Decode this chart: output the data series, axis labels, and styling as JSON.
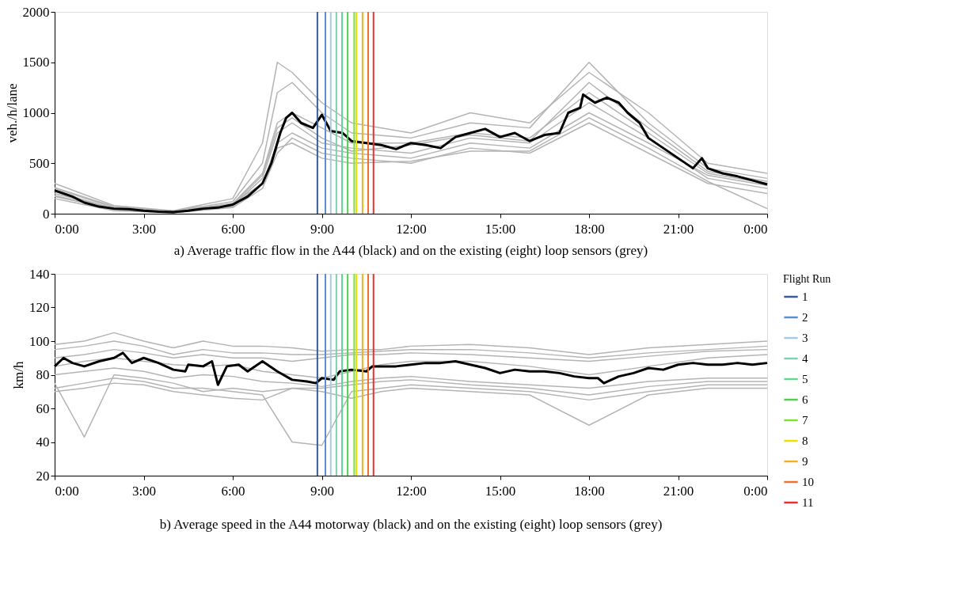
{
  "chart_data": [
    {
      "type": "line",
      "title": "a) Average traffic flow in the A44 (black) and on the existing (eight) loop sensors (grey)",
      "ylabel": "veh./h/lane",
      "xlim": [
        0,
        24
      ],
      "xticks": [
        {
          "value": 0,
          "label": "0:00"
        },
        {
          "value": 3,
          "label": "3:00"
        },
        {
          "value": 6,
          "label": "6:00"
        },
        {
          "value": 9,
          "label": "9:00"
        },
        {
          "value": 12,
          "label": "12:00"
        },
        {
          "value": 15,
          "label": "15:00"
        },
        {
          "value": 18,
          "label": "18:00"
        },
        {
          "value": 21,
          "label": "21:00"
        },
        {
          "value": 24,
          "label": "0:00"
        }
      ],
      "ylim": [
        0,
        2000
      ],
      "yticks": [
        0,
        500,
        1000,
        1500,
        2000
      ],
      "grid": false,
      "marker": "none",
      "line_style": "solid",
      "series": [
        {
          "color": "#b4b4b4",
          "x": [
            0,
            2,
            4,
            6,
            7,
            7.5,
            8,
            9,
            10,
            12,
            14,
            16,
            18,
            20,
            22,
            24
          ],
          "values": [
            300,
            80,
            30,
            150,
            700,
            1500,
            1400,
            1100,
            900,
            800,
            1000,
            900,
            1400,
            1000,
            500,
            400
          ]
        },
        {
          "color": "#b4b4b4",
          "x": [
            0,
            2,
            4,
            6,
            7,
            7.5,
            8,
            9,
            10,
            12,
            14,
            16,
            18,
            20,
            22,
            24
          ],
          "values": [
            250,
            60,
            25,
            120,
            500,
            1200,
            1300,
            1000,
            800,
            750,
            900,
            850,
            1500,
            900,
            450,
            350
          ]
        },
        {
          "color": "#b4b4b4",
          "x": [
            0,
            2,
            4,
            6,
            7,
            7.5,
            8,
            9,
            10,
            12,
            14,
            16,
            18,
            20,
            22,
            24
          ],
          "values": [
            200,
            50,
            20,
            100,
            400,
            900,
            1000,
            850,
            700,
            700,
            800,
            750,
            1200,
            800,
            400,
            300
          ]
        },
        {
          "color": "#b4b4b4",
          "x": [
            0,
            2,
            4,
            6,
            7,
            7.5,
            8,
            9,
            10,
            12,
            14,
            16,
            18,
            20,
            22,
            24
          ],
          "values": [
            180,
            40,
            15,
            80,
            350,
            800,
            900,
            700,
            650,
            600,
            750,
            700,
            1100,
            750,
            350,
            250
          ]
        },
        {
          "color": "#b4b4b4",
          "x": [
            0,
            2,
            4,
            6,
            7,
            7.5,
            8,
            9,
            10,
            12,
            14,
            16,
            18,
            20,
            22,
            24
          ],
          "values": [
            220,
            50,
            20,
            100,
            300,
            700,
            800,
            650,
            600,
            550,
            700,
            650,
            1000,
            700,
            380,
            280
          ]
        },
        {
          "color": "#b4b4b4",
          "x": [
            0,
            2,
            4,
            6,
            7,
            7.5,
            8,
            9,
            10,
            12,
            14,
            16,
            18,
            20,
            22,
            24
          ],
          "values": [
            150,
            30,
            10,
            60,
            250,
            600,
            750,
            600,
            550,
            500,
            650,
            600,
            900,
            600,
            300,
            200
          ]
        },
        {
          "color": "#b4b4b4",
          "x": [
            0,
            2,
            4,
            6,
            7,
            7.5,
            8,
            9,
            10,
            12,
            14,
            16,
            18,
            20,
            22,
            24
          ],
          "values": [
            260,
            70,
            25,
            90,
            380,
            850,
            950,
            750,
            620,
            680,
            780,
            720,
            1300,
            850,
            420,
            320
          ]
        },
        {
          "color": "#b4b4b4",
          "x": [
            0,
            2,
            4,
            6,
            7,
            7.5,
            8,
            9,
            10,
            12,
            14,
            16,
            18,
            20,
            22,
            24
          ],
          "values": [
            170,
            45,
            15,
            70,
            300,
            650,
            700,
            550,
            500,
            520,
            620,
            620,
            950,
            650,
            320,
            50
          ]
        },
        {
          "color": "#000000",
          "x": [
            0,
            0.3,
            0.6,
            1,
            1.5,
            2,
            2.5,
            3,
            3.5,
            4,
            4.5,
            5,
            5.5,
            6,
            6.5,
            7,
            7.3,
            7.6,
            7.8,
            8,
            8.3,
            8.7,
            9,
            9.3,
            9.7,
            10,
            10.5,
            11,
            11.5,
            12,
            12.5,
            13,
            13.5,
            14,
            14.5,
            15,
            15.5,
            16,
            16.5,
            17,
            17.3,
            17.7,
            17.8,
            18.2,
            18.6,
            19,
            19.3,
            19.7,
            20,
            20.5,
            21,
            21.5,
            21.8,
            22,
            22.5,
            23,
            23.5,
            24
          ],
          "values": [
            230,
            200,
            170,
            110,
            70,
            50,
            45,
            30,
            20,
            15,
            30,
            50,
            60,
            90,
            170,
            300,
            500,
            800,
            950,
            1000,
            900,
            850,
            980,
            820,
            800,
            720,
            700,
            680,
            640,
            700,
            680,
            650,
            760,
            800,
            840,
            760,
            800,
            720,
            780,
            800,
            1000,
            1050,
            1180,
            1100,
            1150,
            1100,
            1000,
            900,
            750,
            650,
            550,
            450,
            550,
            450,
            400,
            370,
            330,
            290
          ]
        },
        {
          "color": "#3a5a9a",
          "x": [
            8.85,
            8.85
          ],
          "values": [
            0,
            2000
          ]
        },
        {
          "color": "#5b8fd0",
          "x": [
            9.12,
            9.12
          ],
          "values": [
            0,
            2000
          ]
        },
        {
          "color": "#a8c8e8",
          "x": [
            9.3,
            9.3
          ],
          "values": [
            0,
            2000
          ]
        },
        {
          "color": "#7fd0b0",
          "x": [
            9.49,
            9.49
          ],
          "values": [
            0,
            2000
          ]
        },
        {
          "color": "#60d890",
          "x": [
            9.68,
            9.68
          ],
          "values": [
            0,
            2000
          ]
        },
        {
          "color": "#50d050",
          "x": [
            9.87,
            9.87
          ],
          "values": [
            0,
            2000
          ]
        },
        {
          "color": "#80e030",
          "x": [
            10.09,
            10.09
          ],
          "values": [
            0,
            2000
          ]
        },
        {
          "color": "#f0e000",
          "x": [
            10.16,
            10.16
          ],
          "values": [
            0,
            2000
          ]
        },
        {
          "color": "#f0b020",
          "x": [
            10.37,
            10.37
          ],
          "values": [
            0,
            2000
          ]
        },
        {
          "color": "#f07030",
          "x": [
            10.56,
            10.56
          ],
          "values": [
            0,
            2000
          ]
        },
        {
          "color": "#e83030",
          "x": [
            10.74,
            10.74
          ],
          "values": [
            0,
            2000
          ]
        }
      ]
    },
    {
      "type": "line",
      "title": "b) Average speed in the A44 motorway (black) and on the existing (eight) loop sensors (grey)",
      "ylabel": "km/h",
      "legend_title": "Flight Run",
      "xlim": [
        0,
        24
      ],
      "xticks": [
        {
          "value": 0,
          "label": "0:00"
        },
        {
          "value": 3,
          "label": "3:00"
        },
        {
          "value": 6,
          "label": "6:00"
        },
        {
          "value": 9,
          "label": "9:00"
        },
        {
          "value": 12,
          "label": "12:00"
        },
        {
          "value": 15,
          "label": "15:00"
        },
        {
          "value": 18,
          "label": "18:00"
        },
        {
          "value": 21,
          "label": "21:00"
        },
        {
          "value": 24,
          "label": "0:00"
        }
      ],
      "ylim": [
        20,
        140
      ],
      "yticks": [
        20,
        40,
        60,
        80,
        100,
        120,
        140
      ],
      "grid": false,
      "legend": "right",
      "marker": "none",
      "line_style": "solid",
      "series": [
        {
          "color": "#b4b4b4",
          "x": [
            0,
            1,
            2,
            3,
            4,
            5,
            6,
            7,
            8,
            9,
            10,
            11,
            12,
            14,
            16,
            18,
            20,
            22,
            24
          ],
          "values": [
            98,
            100,
            105,
            100,
            96,
            100,
            97,
            97,
            96,
            94,
            95,
            95,
            97,
            98,
            96,
            92,
            96,
            98,
            100
          ]
        },
        {
          "color": "#b4b4b4",
          "x": [
            0,
            1,
            2,
            3,
            4,
            5,
            6,
            7,
            8,
            9,
            10,
            11,
            12,
            14,
            16,
            18,
            20,
            22,
            24
          ],
          "values": [
            95,
            97,
            100,
            97,
            92,
            95,
            93,
            93,
            92,
            92,
            93,
            94,
            95,
            95,
            93,
            90,
            93,
            95,
            97
          ]
        },
        {
          "color": "#b4b4b4",
          "x": [
            0,
            1,
            2,
            3,
            4,
            5,
            6,
            7,
            8,
            9,
            10,
            11,
            12,
            14,
            16,
            18,
            20,
            22,
            24
          ],
          "values": [
            90,
            92,
            95,
            93,
            90,
            92,
            90,
            90,
            88,
            90,
            92,
            92,
            93,
            92,
            90,
            88,
            91,
            94,
            95
          ]
        },
        {
          "color": "#b4b4b4",
          "x": [
            0,
            1,
            2,
            3,
            4,
            5,
            6,
            7,
            8,
            9,
            10,
            11,
            12,
            14,
            16,
            18,
            20,
            22,
            24
          ],
          "values": [
            85,
            88,
            90,
            88,
            86,
            85,
            86,
            82,
            80,
            78,
            82,
            86,
            88,
            88,
            85,
            80,
            85,
            90,
            92
          ]
        },
        {
          "color": "#b4b4b4",
          "x": [
            0,
            1,
            2,
            3,
            4,
            5,
            6,
            7,
            8,
            9,
            10,
            11,
            12,
            14,
            16,
            18,
            20,
            22,
            24
          ],
          "values": [
            80,
            82,
            84,
            82,
            78,
            80,
            79,
            76,
            75,
            73,
            76,
            78,
            79,
            76,
            74,
            72,
            76,
            78,
            78
          ]
        },
        {
          "color": "#b4b4b4",
          "x": [
            0,
            1,
            2,
            3,
            4,
            5,
            6,
            7,
            8,
            9,
            10,
            11,
            12,
            14,
            16,
            18,
            20,
            22,
            24
          ],
          "values": [
            75,
            43,
            80,
            78,
            75,
            70,
            72,
            70,
            72,
            72,
            74,
            76,
            77,
            74,
            72,
            68,
            73,
            76,
            76
          ]
        },
        {
          "color": "#b4b4b4",
          "x": [
            0,
            1,
            2,
            3,
            4,
            5,
            6,
            7,
            8,
            9,
            10,
            11,
            12,
            14,
            16,
            18,
            20,
            22,
            24
          ],
          "values": [
            72,
            75,
            78,
            76,
            72,
            72,
            70,
            68,
            40,
            38,
            70,
            72,
            74,
            72,
            70,
            65,
            70,
            74,
            74
          ]
        },
        {
          "color": "#b4b4b4",
          "x": [
            0,
            1,
            2,
            3,
            4,
            5,
            6,
            7,
            8,
            9,
            10,
            11,
            12,
            14,
            16,
            18,
            20,
            22,
            24
          ],
          "values": [
            70,
            72,
            75,
            74,
            70,
            68,
            66,
            65,
            72,
            70,
            66,
            70,
            72,
            70,
            68,
            50,
            68,
            72,
            72
          ]
        },
        {
          "color": "#000000",
          "x": [
            0,
            0.3,
            0.6,
            1,
            1.5,
            2,
            2.3,
            2.6,
            3,
            3.5,
            4,
            4.4,
            4.5,
            5,
            5.3,
            5.5,
            5.8,
            6.2,
            6.5,
            7,
            7.5,
            8,
            8.5,
            8.8,
            9,
            9.4,
            9.6,
            10,
            10.5,
            10.7,
            11.5,
            12,
            12.5,
            13,
            13.5,
            14,
            14.5,
            15,
            15.5,
            16,
            16.5,
            17,
            17.5,
            18,
            18.3,
            18.5,
            19,
            19.5,
            20,
            20.5,
            21,
            21.5,
            22,
            22.5,
            23,
            23.5,
            24
          ],
          "values": [
            85,
            90,
            87,
            85,
            88,
            90,
            93,
            87,
            90,
            87,
            83,
            82,
            86,
            85,
            88,
            74,
            85,
            86,
            82,
            88,
            82,
            77,
            76,
            75,
            78,
            77,
            82,
            83,
            82,
            85,
            85,
            86,
            87,
            87,
            88,
            86,
            84,
            81,
            83,
            82,
            82,
            81,
            79,
            78,
            78,
            75,
            79,
            81,
            84,
            83,
            86,
            87,
            86,
            86,
            87,
            86,
            87
          ]
        },
        {
          "name": "1",
          "color": "#3a5a9a",
          "x": [
            8.85,
            8.85
          ],
          "values": [
            20,
            140
          ]
        },
        {
          "name": "2",
          "color": "#5b8fd0",
          "x": [
            9.12,
            9.12
          ],
          "values": [
            20,
            140
          ]
        },
        {
          "name": "3",
          "color": "#a8c8e8",
          "x": [
            9.3,
            9.3
          ],
          "values": [
            20,
            140
          ]
        },
        {
          "name": "4",
          "color": "#7fd0b0",
          "x": [
            9.49,
            9.49
          ],
          "values": [
            20,
            140
          ]
        },
        {
          "name": "5",
          "color": "#60d890",
          "x": [
            9.68,
            9.68
          ],
          "values": [
            20,
            140
          ]
        },
        {
          "name": "6",
          "color": "#50d050",
          "x": [
            9.87,
            9.87
          ],
          "values": [
            20,
            140
          ]
        },
        {
          "name": "7",
          "color": "#80e030",
          "x": [
            10.09,
            10.09
          ],
          "values": [
            20,
            140
          ]
        },
        {
          "name": "8",
          "color": "#f0e000",
          "x": [
            10.16,
            10.16
          ],
          "values": [
            20,
            140
          ]
        },
        {
          "name": "9",
          "color": "#f0b020",
          "x": [
            10.37,
            10.37
          ],
          "values": [
            20,
            140
          ]
        },
        {
          "name": "10",
          "color": "#f07030",
          "x": [
            10.56,
            10.56
          ],
          "values": [
            20,
            140
          ]
        },
        {
          "name": "11",
          "color": "#e83030",
          "x": [
            10.74,
            10.74
          ],
          "values": [
            20,
            140
          ]
        }
      ]
    }
  ]
}
